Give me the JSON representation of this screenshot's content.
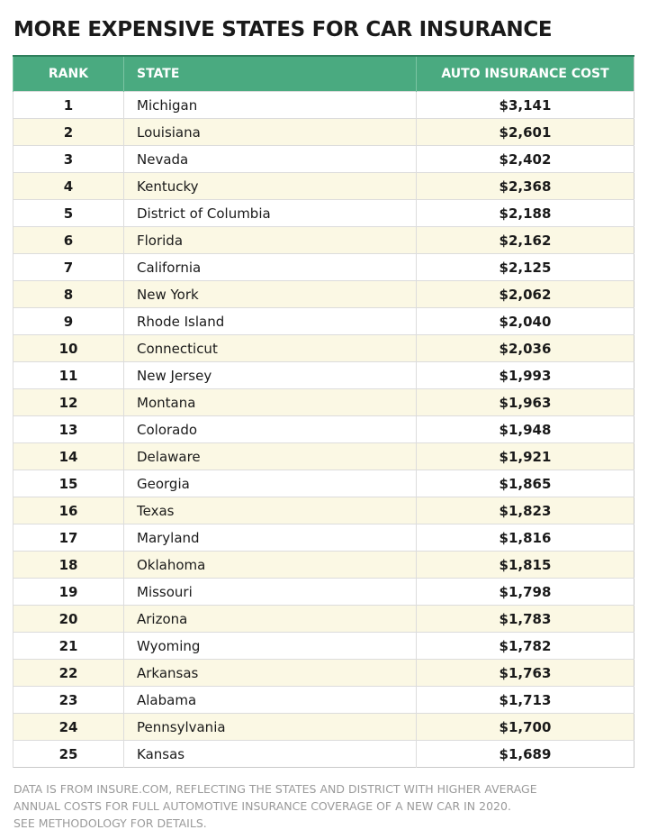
{
  "header": {
    "title": "MORE EXPENSIVE STATES FOR CAR INSURANCE"
  },
  "table": {
    "columns": [
      "RANK",
      "STATE",
      "AUTO INSURANCE COST"
    ],
    "rows": [
      [
        "1",
        "Michigan",
        "$3,141"
      ],
      [
        "2",
        "Louisiana",
        "$2,601"
      ],
      [
        "3",
        "Nevada",
        "$2,402"
      ],
      [
        "4",
        "Kentucky",
        "$2,368"
      ],
      [
        "5",
        "District of Columbia",
        "$2,188"
      ],
      [
        "6",
        "Florida",
        "$2,162"
      ],
      [
        "7",
        "California",
        "$2,125"
      ],
      [
        "8",
        "New York",
        "$2,062"
      ],
      [
        "9",
        "Rhode Island",
        "$2,040"
      ],
      [
        "10",
        "Connecticut",
        "$2,036"
      ],
      [
        "11",
        "New Jersey",
        "$1,993"
      ],
      [
        "12",
        "Montana",
        "$1,963"
      ],
      [
        "13",
        "Colorado",
        "$1,948"
      ],
      [
        "14",
        "Delaware",
        "$1,921"
      ],
      [
        "15",
        "Georgia",
        "$1,865"
      ],
      [
        "16",
        "Texas",
        "$1,823"
      ],
      [
        "17",
        "Maryland",
        "$1,816"
      ],
      [
        "18",
        "Oklahoma",
        "$1,815"
      ],
      [
        "19",
        "Missouri",
        "$1,798"
      ],
      [
        "20",
        "Arizona",
        "$1,783"
      ],
      [
        "21",
        "Wyoming",
        "$1,782"
      ],
      [
        "22",
        "Arkansas",
        "$1,763"
      ],
      [
        "23",
        "Alabama",
        "$1,713"
      ],
      [
        "24",
        "Pennsylvania",
        "$1,700"
      ],
      [
        "25",
        "Kansas",
        "$1,689"
      ]
    ]
  },
  "footnote": [
    "DATA IS FROM INSURE.COM, REFLECTING THE STATES AND DISTRICT WITH HIGHER AVERAGE",
    "ANNUAL COSTS FOR FULL AUTOMOTIVE INSURANCE COVERAGE OF A NEW CAR IN 2020.",
    "SEE METHODOLOGY FOR DETAILS."
  ]
}
